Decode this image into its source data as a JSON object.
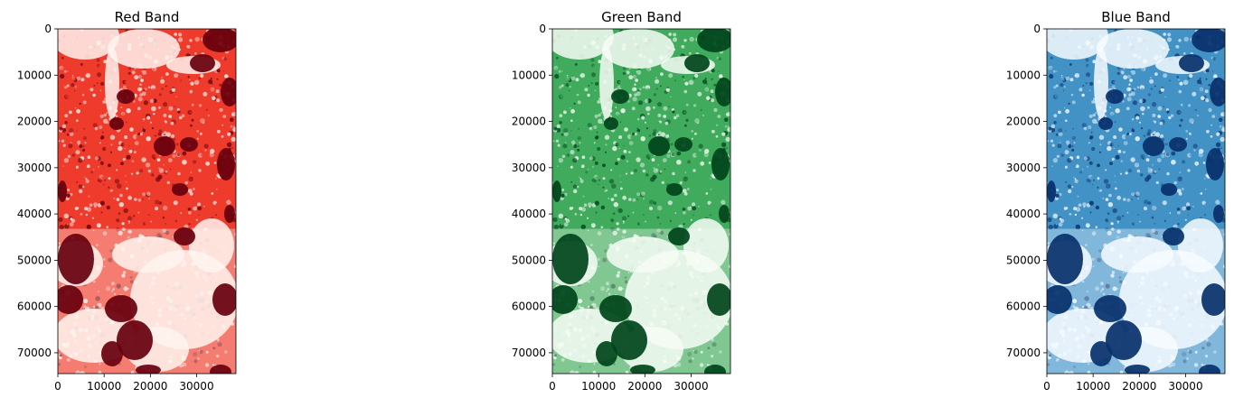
{
  "chart_data": [
    {
      "type": "heatmap",
      "title": "Red Band",
      "colormap": "Reds",
      "colors": {
        "light": "#fff5f0",
        "mid": "#ef3b2c",
        "dark": "#67000d"
      },
      "xlim": [
        0,
        38500
      ],
      "ylim": [
        74500,
        0
      ],
      "xticks": [
        0,
        10000,
        20000,
        30000
      ],
      "yticks": [
        0,
        10000,
        20000,
        30000,
        40000,
        50000,
        60000,
        70000
      ],
      "xtick_labels": [
        "0",
        "10000",
        "20000",
        "30000"
      ],
      "ytick_labels": [
        "0",
        "10000",
        "20000",
        "30000",
        "40000",
        "50000",
        "60000",
        "70000"
      ]
    },
    {
      "type": "heatmap",
      "title": "Green Band",
      "colormap": "Greens",
      "colors": {
        "light": "#f7fcf5",
        "mid": "#41ab5d",
        "dark": "#00441b"
      },
      "xlim": [
        0,
        38500
      ],
      "ylim": [
        74500,
        0
      ],
      "xticks": [
        0,
        10000,
        20000,
        30000
      ],
      "yticks": [
        0,
        10000,
        20000,
        30000,
        40000,
        50000,
        60000,
        70000
      ],
      "xtick_labels": [
        "0",
        "10000",
        "20000",
        "30000"
      ],
      "ytick_labels": [
        "0",
        "10000",
        "20000",
        "30000",
        "40000",
        "50000",
        "60000",
        "70000"
      ]
    },
    {
      "type": "heatmap",
      "title": "Blue Band",
      "colormap": "Blues",
      "colors": {
        "light": "#f7fbff",
        "mid": "#4292c6",
        "dark": "#08306b"
      },
      "xlim": [
        0,
        38500
      ],
      "ylim": [
        74500,
        0
      ],
      "xticks": [
        0,
        10000,
        20000,
        30000
      ],
      "yticks": [
        0,
        10000,
        20000,
        30000,
        40000,
        50000,
        60000,
        70000
      ],
      "xtick_labels": [
        "0",
        "10000",
        "20000",
        "30000"
      ],
      "ytick_labels": [
        "0",
        "10000",
        "20000",
        "30000",
        "40000",
        "50000",
        "60000",
        "70000"
      ]
    }
  ]
}
